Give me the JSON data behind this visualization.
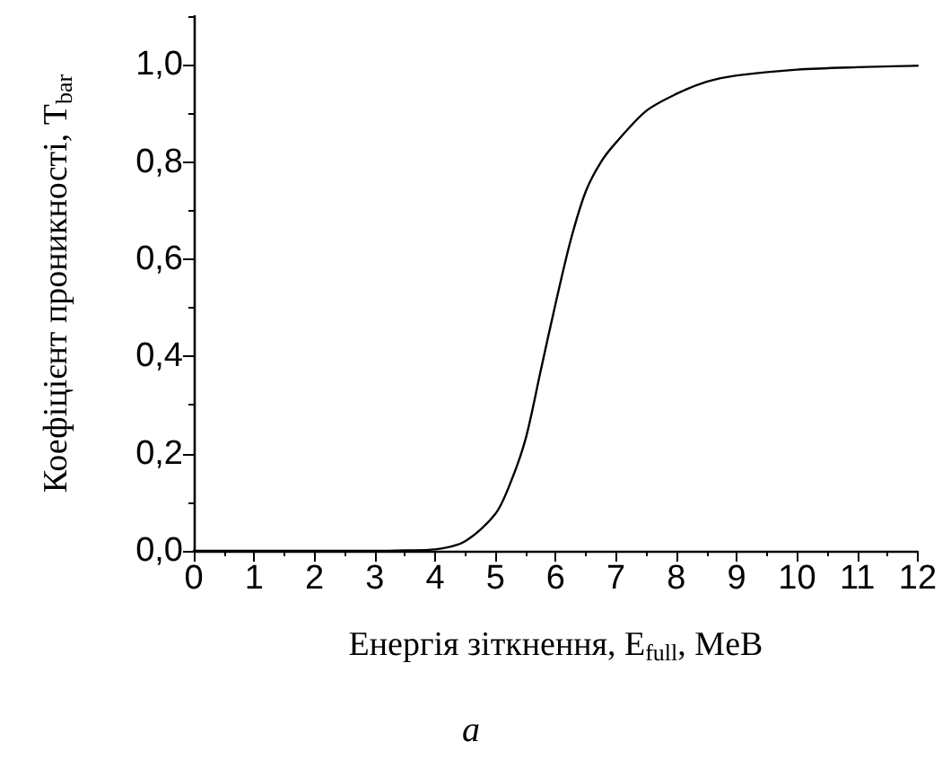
{
  "chart_data": {
    "type": "line",
    "xlabel": "Енергія зіткнення, E$_{full}$, MeВ",
    "ylabel": "Коефіцієнт проникності, T$_{bar}$",
    "annotations": [
      "a"
    ],
    "x": [
      0,
      1,
      2,
      3,
      3.5,
      4,
      4.5,
      5,
      5.25,
      5.5,
      5.75,
      6,
      6.25,
      6.5,
      6.75,
      7,
      7.5,
      8,
      8.5,
      9,
      10,
      11,
      12
    ],
    "series": [
      {
        "color": "#000000",
        "values": [
          0,
          0,
          0,
          0,
          0.001,
          0.003,
          0.02,
          0.076,
          0.14,
          0.23,
          0.37,
          0.51,
          0.64,
          0.74,
          0.8,
          0.84,
          0.905,
          0.94,
          0.965,
          0.978,
          0.99,
          0.995,
          0.998
        ]
      }
    ],
    "xlim": [
      0,
      12
    ],
    "xticks": [
      0,
      1,
      2,
      3,
      4,
      5,
      6,
      7,
      8,
      9,
      10,
      11,
      12
    ],
    "ylim": [
      0,
      1.1
    ],
    "yticks": [
      {
        "value": 0,
        "label": "0,0"
      },
      {
        "value": 0.2,
        "label": "0,2"
      },
      {
        "value": 0.4,
        "label": "0,4"
      },
      {
        "value": 0.6,
        "label": "0,6"
      },
      {
        "value": 0.8,
        "label": "0,8"
      },
      {
        "value": 1,
        "label": "1,0"
      }
    ],
    "grid": false,
    "marker": "none",
    "line_style": "solid"
  }
}
